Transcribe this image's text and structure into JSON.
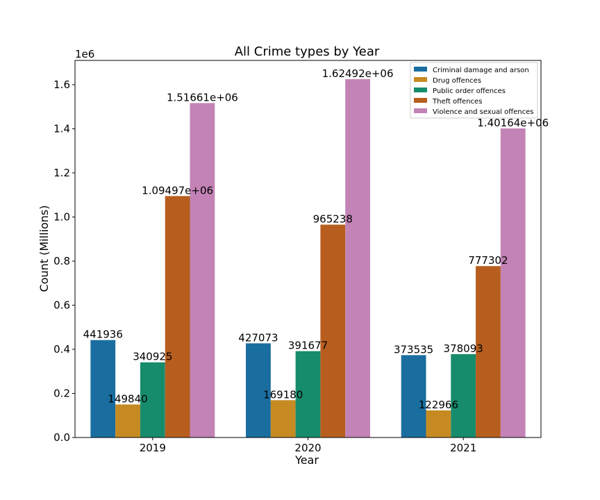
{
  "chart_data": {
    "type": "bar",
    "title": "All Crime types by Year",
    "xlabel": "Year",
    "ylabel": "Count (Millions)",
    "y_offset_label": "1e6",
    "categories": [
      "2019",
      "2020",
      "2021"
    ],
    "ylim": [
      0,
      1.71
    ],
    "yticks": [
      "0.0",
      "0.2",
      "0.4",
      "0.6",
      "0.8",
      "1.0",
      "1.2",
      "1.4",
      "1.6"
    ],
    "legend_position": "top-right",
    "grid": false,
    "series": [
      {
        "name": "Criminal damage and arson",
        "color": "#1a6d9f",
        "values": [
          441936,
          427073,
          373535
        ],
        "labels": [
          "441936",
          "427073",
          "373535"
        ]
      },
      {
        "name": "Drug offences",
        "color": "#c68a22",
        "values": [
          149840,
          169180,
          122966
        ],
        "labels": [
          "149840",
          "169180",
          "122966"
        ]
      },
      {
        "name": "Public order offences",
        "color": "#178c6c",
        "values": [
          340925,
          391677,
          378093
        ],
        "labels": [
          "340925",
          "391677",
          "378093"
        ]
      },
      {
        "name": "Theft offences",
        "color": "#b75e1f",
        "values": [
          1094970,
          965238,
          777302
        ],
        "labels": [
          "1.09497e+06",
          "965238",
          "777302"
        ]
      },
      {
        "name": "Violence and sexual offences",
        "color": "#c383b6",
        "values": [
          1516610,
          1624920,
          1401640
        ],
        "labels": [
          "1.51661e+06",
          "1.62492e+06",
          "1.40164e+06"
        ]
      }
    ]
  }
}
